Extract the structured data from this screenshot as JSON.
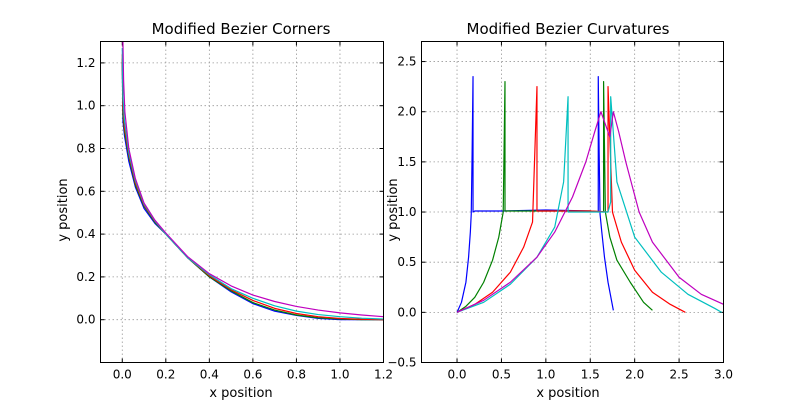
{
  "chart_data": [
    {
      "type": "line",
      "title": "Modified Bezier Corners",
      "xlabel": "x position",
      "ylabel": "y position",
      "xlim": [
        -0.1,
        1.2
      ],
      "ylim": [
        -0.2,
        1.3
      ],
      "xticks": [
        "0.0",
        "0.2",
        "0.4",
        "0.6",
        "0.8",
        "1.0",
        "1.2"
      ],
      "yticks": [
        "0.0",
        "0.2",
        "0.4",
        "0.6",
        "0.8",
        "1.0",
        "1.2"
      ],
      "grid": true,
      "series": [
        {
          "color": "#0000ff",
          "x": [
            0.0,
            0.003,
            0.01,
            0.03,
            0.06,
            0.1,
            0.15,
            0.2,
            0.3,
            0.4,
            0.5,
            0.6,
            0.7,
            0.8,
            0.9,
            1.0,
            1.1,
            1.2
          ],
          "y": [
            1.2,
            0.93,
            0.86,
            0.74,
            0.62,
            0.52,
            0.45,
            0.4,
            0.29,
            0.2,
            0.13,
            0.075,
            0.04,
            0.02,
            0.006,
            0.0,
            0.0,
            0.0
          ]
        },
        {
          "color": "#008000",
          "x": [
            0.0,
            0.003,
            0.01,
            0.03,
            0.06,
            0.1,
            0.15,
            0.2,
            0.3,
            0.4,
            0.5,
            0.6,
            0.7,
            0.8,
            0.9,
            1.0,
            1.1,
            1.2
          ],
          "y": [
            1.22,
            0.96,
            0.88,
            0.76,
            0.63,
            0.53,
            0.455,
            0.4,
            0.29,
            0.2,
            0.135,
            0.08,
            0.045,
            0.022,
            0.009,
            0.003,
            0.0,
            0.0
          ]
        },
        {
          "color": "#ff0000",
          "x": [
            0.0,
            0.003,
            0.01,
            0.03,
            0.06,
            0.1,
            0.15,
            0.2,
            0.3,
            0.4,
            0.5,
            0.6,
            0.7,
            0.8,
            0.9,
            1.0,
            1.1,
            1.2
          ],
          "y": [
            1.24,
            1.0,
            0.9,
            0.77,
            0.64,
            0.535,
            0.46,
            0.4,
            0.29,
            0.205,
            0.14,
            0.09,
            0.053,
            0.029,
            0.014,
            0.006,
            0.002,
            0.0
          ]
        },
        {
          "color": "#00bfbf",
          "x": [
            0.0,
            0.003,
            0.01,
            0.03,
            0.06,
            0.1,
            0.15,
            0.2,
            0.3,
            0.4,
            0.5,
            0.6,
            0.7,
            0.8,
            0.9,
            1.0,
            1.1,
            1.2
          ],
          "y": [
            1.27,
            1.04,
            0.93,
            0.78,
            0.65,
            0.54,
            0.462,
            0.4,
            0.29,
            0.21,
            0.145,
            0.1,
            0.065,
            0.04,
            0.024,
            0.014,
            0.007,
            0.003
          ]
        },
        {
          "color": "#bf00bf",
          "x": [
            0.003,
            0.006,
            0.012,
            0.03,
            0.06,
            0.1,
            0.15,
            0.2,
            0.3,
            0.4,
            0.5,
            0.6,
            0.7,
            0.8,
            0.9,
            1.0,
            1.1,
            1.2
          ],
          "y": [
            1.3,
            1.12,
            0.97,
            0.8,
            0.66,
            0.545,
            0.465,
            0.405,
            0.295,
            0.215,
            0.158,
            0.115,
            0.085,
            0.062,
            0.045,
            0.032,
            0.022,
            0.014
          ]
        }
      ]
    },
    {
      "type": "line",
      "title": "Modified Bezier Curvatures",
      "xlabel": "x position",
      "ylabel": "y position",
      "xlim": [
        -0.4,
        3.0
      ],
      "ylim": [
        -0.5,
        2.7
      ],
      "xticks": [
        "0.0",
        "0.5",
        "1.0",
        "1.5",
        "2.0",
        "2.5",
        "3.0"
      ],
      "yticks": [
        "−0.5",
        "0.0",
        "0.5",
        "1.0",
        "1.5",
        "2.0",
        "2.5"
      ],
      "grid": true,
      "series": [
        {
          "color": "#0000ff",
          "x": [
            0.0,
            0.05,
            0.1,
            0.13,
            0.15,
            0.16,
            0.17,
            0.18,
            0.18,
            0.2,
            0.5,
            1.0,
            1.5,
            1.59,
            1.59,
            1.6,
            1.61,
            1.63,
            1.66,
            1.7,
            1.76
          ],
          "y": [
            0.0,
            0.1,
            0.3,
            0.55,
            0.8,
            0.98,
            1.6,
            2.35,
            1.0,
            1.01,
            1.01,
            1.02,
            1.01,
            1.0,
            2.35,
            1.6,
            0.98,
            0.8,
            0.55,
            0.3,
            0.02
          ]
        },
        {
          "color": "#008000",
          "x": [
            0.0,
            0.1,
            0.2,
            0.3,
            0.4,
            0.47,
            0.52,
            0.54,
            0.54,
            0.6,
            1.0,
            1.5,
            1.65,
            1.65,
            1.67,
            1.72,
            1.8,
            1.95,
            2.1,
            2.2
          ],
          "y": [
            0.0,
            0.06,
            0.15,
            0.3,
            0.52,
            0.75,
            1.0,
            2.3,
            1.01,
            1.01,
            1.01,
            1.01,
            1.0,
            2.3,
            1.0,
            0.75,
            0.52,
            0.3,
            0.1,
            0.02
          ]
        },
        {
          "color": "#ff0000",
          "x": [
            0.0,
            0.2,
            0.4,
            0.6,
            0.75,
            0.85,
            0.9,
            0.9,
            1.0,
            1.5,
            1.7,
            1.7,
            1.75,
            1.85,
            2.0,
            2.2,
            2.4,
            2.57
          ],
          "y": [
            0.0,
            0.08,
            0.2,
            0.4,
            0.65,
            0.9,
            2.25,
            1.01,
            1.01,
            1.01,
            1.0,
            2.25,
            1.0,
            0.7,
            0.42,
            0.2,
            0.08,
            0.0
          ]
        },
        {
          "color": "#00bfbf",
          "x": [
            0.0,
            0.3,
            0.6,
            0.9,
            1.1,
            1.2,
            1.25,
            1.25,
            1.4,
            1.7,
            1.73,
            1.73,
            1.8,
            2.0,
            2.3,
            2.6,
            2.9,
            2.98
          ],
          "y": [
            0.0,
            0.1,
            0.28,
            0.55,
            0.85,
            1.3,
            2.15,
            1.0,
            1.0,
            1.0,
            1.1,
            2.15,
            1.3,
            0.75,
            0.4,
            0.18,
            0.04,
            0.0
          ]
        },
        {
          "color": "#bf00bf",
          "x": [
            0.0,
            0.3,
            0.6,
            0.9,
            1.1,
            1.3,
            1.45,
            1.55,
            1.62,
            1.68,
            1.72,
            1.76,
            1.82,
            1.9,
            2.05,
            2.2,
            2.5,
            2.75,
            3.0
          ],
          "y": [
            0.0,
            0.12,
            0.3,
            0.55,
            0.8,
            1.15,
            1.5,
            1.8,
            2.0,
            1.85,
            1.75,
            2.0,
            1.8,
            1.5,
            1.0,
            0.7,
            0.35,
            0.18,
            0.08
          ]
        }
      ]
    }
  ]
}
